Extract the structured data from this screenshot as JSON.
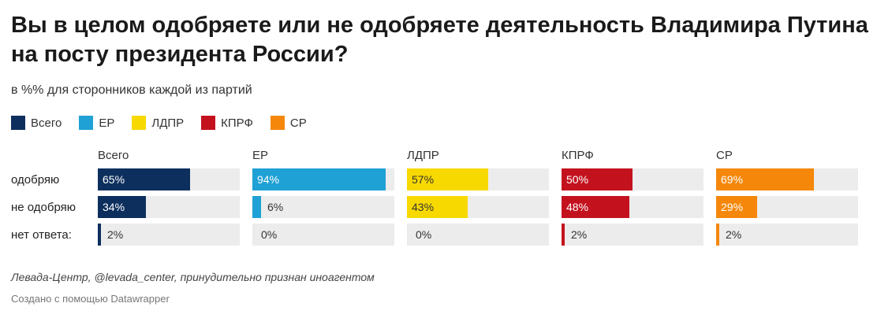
{
  "title": "Вы в целом одобряете или не одобряете деятельность Владимира Путина на посту президента России?",
  "subtitle": "в %% для сторонников каждой из партий",
  "legend": [
    {
      "label": "Всего",
      "color": "#0d2f5e"
    },
    {
      "label": "ЕР",
      "color": "#1fa1d5"
    },
    {
      "label": "ЛДПР",
      "color": "#f7d900"
    },
    {
      "label": "КПРФ",
      "color": "#c3121e"
    },
    {
      "label": "СР",
      "color": "#f5870a"
    }
  ],
  "chart_data": {
    "type": "bar",
    "categories": [
      "одобряю",
      "не одобряю",
      "нет ответа:"
    ],
    "xlim": [
      0,
      100
    ],
    "series": [
      {
        "name": "Всего",
        "color": "#0d2f5e",
        "values": [
          65,
          34,
          2
        ],
        "labels": [
          "65%",
          "34%",
          "2%"
        ]
      },
      {
        "name": "ЕР",
        "color": "#1fa1d5",
        "values": [
          94,
          6,
          0
        ],
        "labels": [
          "94%",
          "6%",
          "0%"
        ]
      },
      {
        "name": "ЛДПР",
        "color": "#f7d900",
        "values": [
          57,
          43,
          0
        ],
        "labels": [
          "57%",
          "43%",
          "0%"
        ]
      },
      {
        "name": "КПРФ",
        "color": "#c3121e",
        "values": [
          50,
          48,
          2
        ],
        "labels": [
          "50%",
          "48%",
          "2%"
        ]
      },
      {
        "name": "СР",
        "color": "#f5870a",
        "values": [
          69,
          29,
          2
        ],
        "labels": [
          "69%",
          "29%",
          "2%"
        ]
      }
    ]
  },
  "source": "Левада-Центр, @levada_center, принудительно признан иноагентом",
  "credit": "Создано с помощью Datawrapper"
}
